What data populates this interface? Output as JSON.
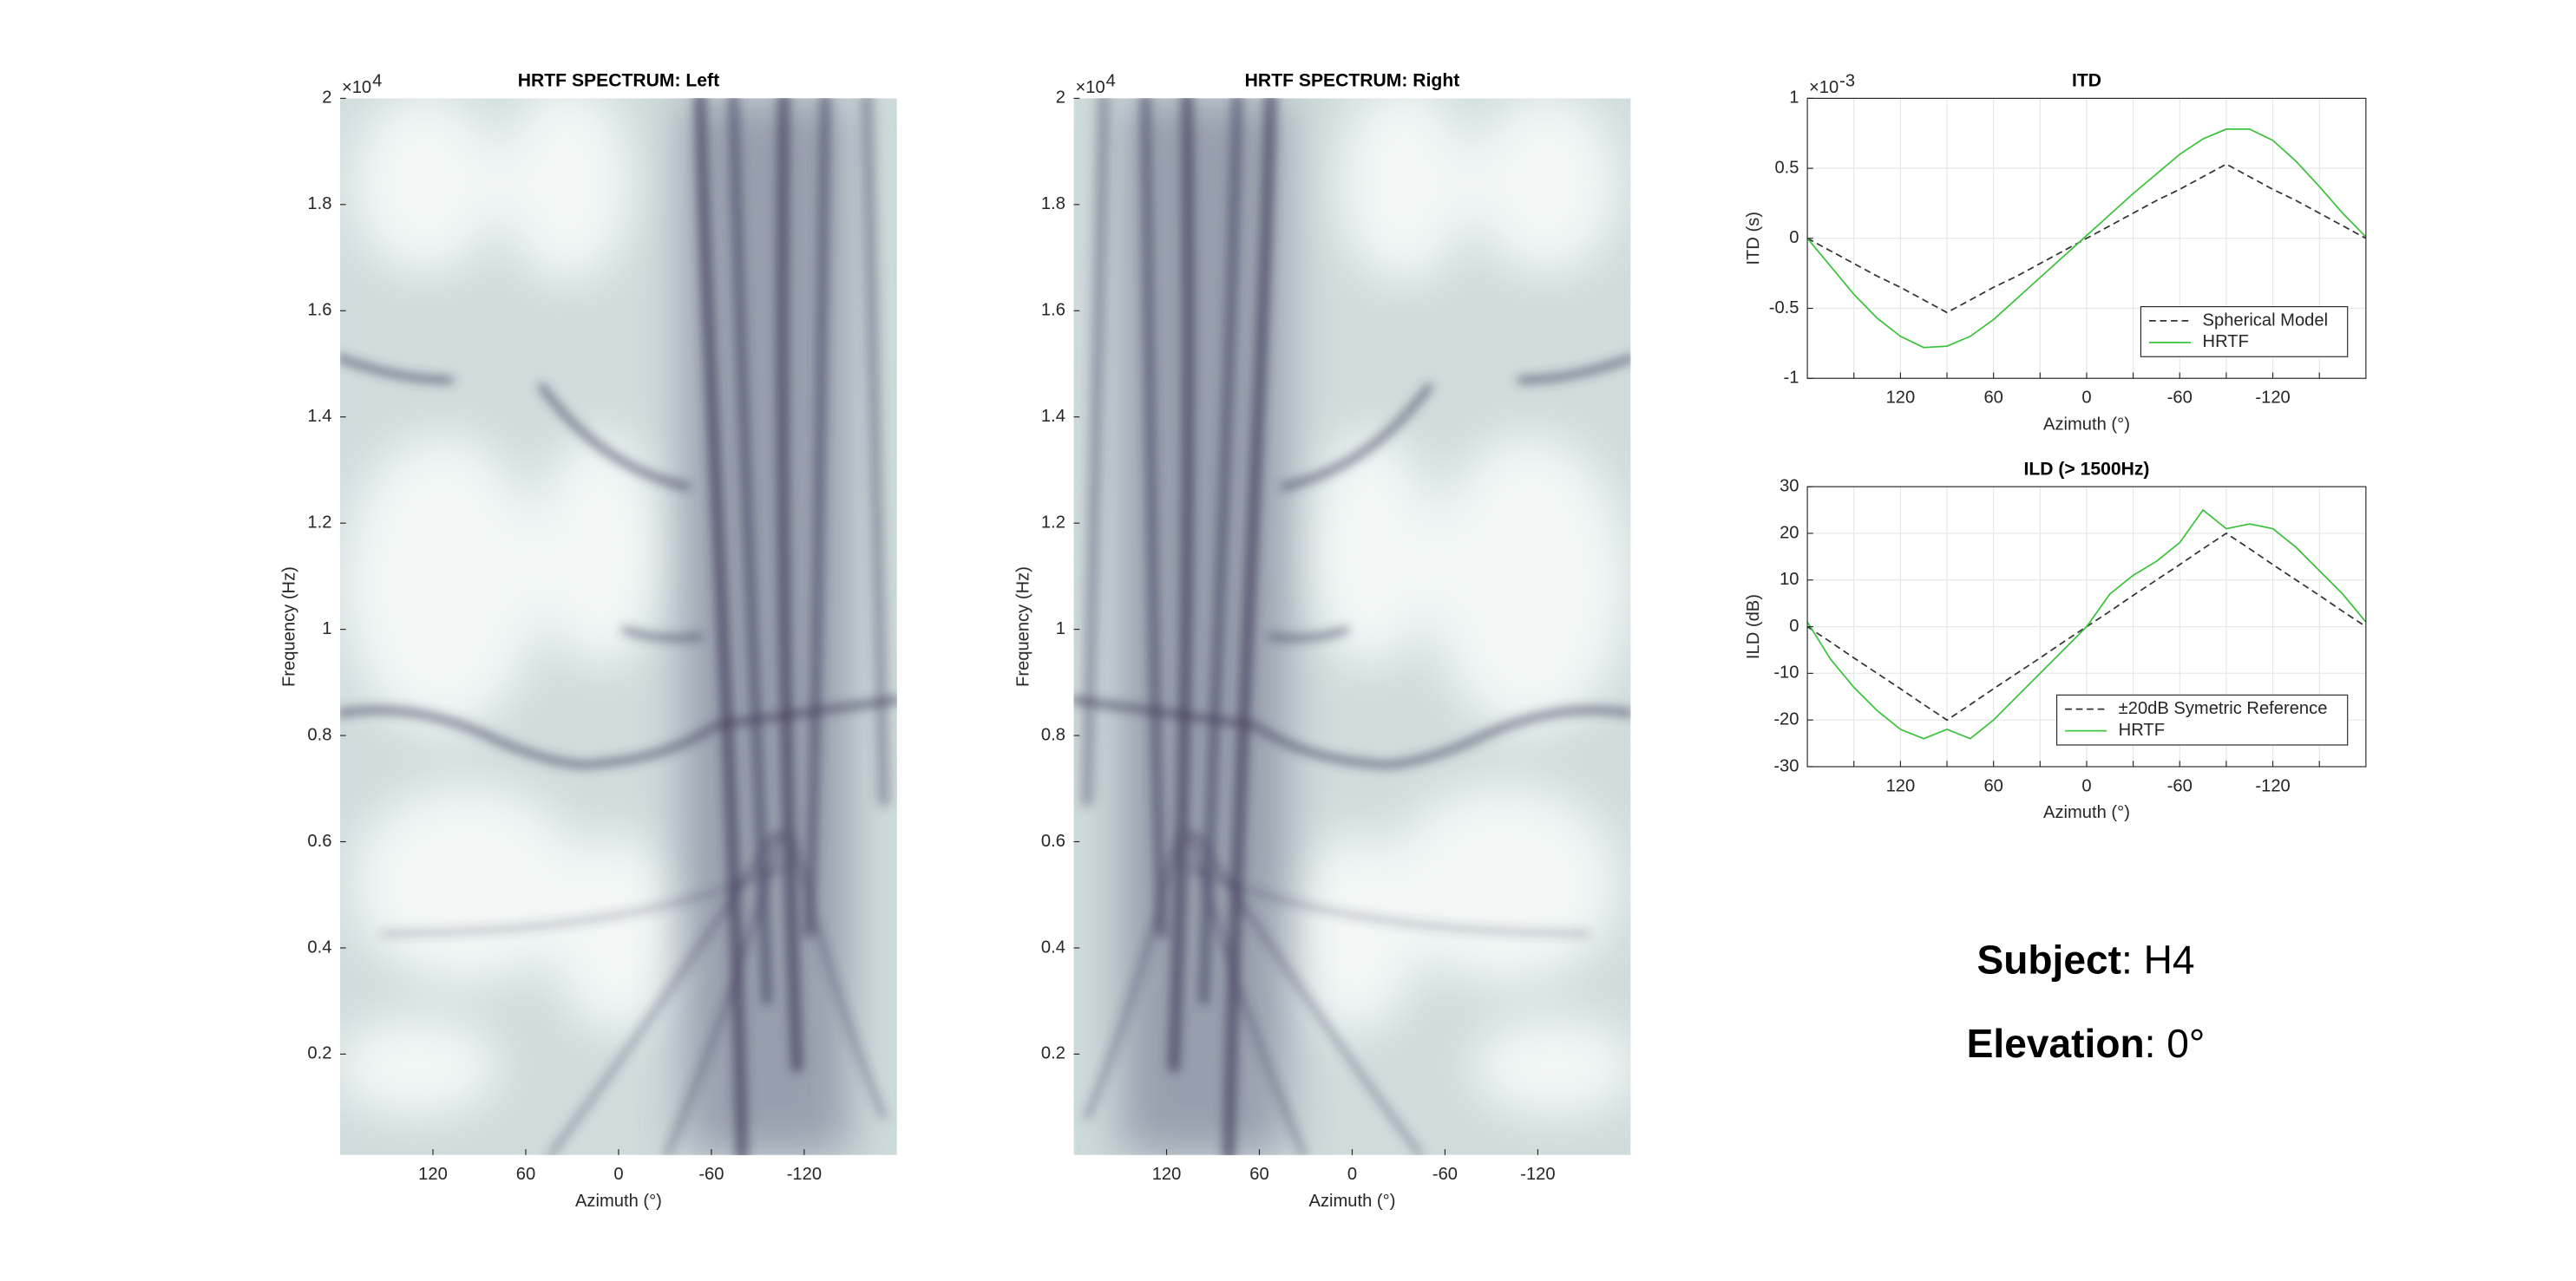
{
  "chart_data": [
    {
      "type": "heatmap",
      "title": "HRTF SPECTRUM: Left",
      "xlabel": "Azimuth (°)",
      "ylabel": "Frequency (Hz)",
      "xlim": [
        180,
        -180
      ],
      "xticks": [
        120,
        60,
        0,
        -60,
        -120
      ],
      "ylim": [
        0.01,
        2
      ],
      "yticks": [
        0.2,
        0.4,
        0.6,
        0.8,
        1,
        1.2,
        1.4,
        1.6,
        1.8,
        2
      ],
      "y_multiplier": {
        "base": "×10",
        "exponent": "4"
      },
      "mirror": false
    },
    {
      "type": "heatmap",
      "title": "HRTF SPECTRUM: Right",
      "xlabel": "Azimuth (°)",
      "ylabel": "Frequency (Hz)",
      "xlim": [
        180,
        -180
      ],
      "xticks": [
        120,
        60,
        0,
        -60,
        -120
      ],
      "ylim": [
        0.01,
        2
      ],
      "yticks": [
        0.2,
        0.4,
        0.6,
        0.8,
        1,
        1.2,
        1.4,
        1.6,
        1.8,
        2
      ],
      "y_multiplier": {
        "base": "×10",
        "exponent": "4"
      },
      "mirror": true
    },
    {
      "type": "line",
      "title": "ITD",
      "xlabel": "Azimuth (°)",
      "ylabel": "ITD (s)",
      "xlim": [
        180,
        -180
      ],
      "xticks": [
        120,
        60,
        0,
        -60,
        -120
      ],
      "xminorticks": [
        150,
        90,
        30,
        -30,
        -90,
        -150
      ],
      "ylim": [
        -1,
        1
      ],
      "yticks": [
        -1,
        -0.5,
        0,
        0.5,
        1
      ],
      "grid": true,
      "legend": "lower right",
      "y_multiplier": {
        "base": "×10",
        "exponent": "-3"
      },
      "x": [
        180,
        165,
        150,
        135,
        120,
        105,
        90,
        75,
        60,
        45,
        30,
        15,
        0,
        -15,
        -30,
        -45,
        -60,
        -75,
        -90,
        -105,
        -120,
        -135,
        -150,
        -165,
        -180
      ],
      "series": [
        {
          "name": "Spherical Model",
          "color": "#333333",
          "linestyle": "dashed",
          "values": [
            0,
            -0.09,
            -0.18,
            -0.27,
            -0.35,
            -0.44,
            -0.53,
            -0.44,
            -0.35,
            -0.27,
            -0.18,
            -0.09,
            0,
            0.09,
            0.18,
            0.27,
            0.35,
            0.44,
            0.53,
            0.44,
            0.35,
            0.27,
            0.18,
            0.09,
            0
          ]
        },
        {
          "name": "HRTF",
          "color": "#3cc23c",
          "linestyle": "solid",
          "values": [
            0,
            -0.2,
            -0.4,
            -0.57,
            -0.7,
            -0.78,
            -0.77,
            -0.7,
            -0.58,
            -0.43,
            -0.28,
            -0.13,
            0.02,
            0.17,
            0.32,
            0.46,
            0.6,
            0.71,
            0.78,
            0.78,
            0.7,
            0.55,
            0.37,
            0.18,
            0.01
          ]
        }
      ]
    },
    {
      "type": "line",
      "title": "ILD (> 1500Hz)",
      "xlabel": "Azimuth (°)",
      "ylabel": "ILD (dB)",
      "xlim": [
        180,
        -180
      ],
      "xticks": [
        120,
        60,
        0,
        -60,
        -120
      ],
      "xminorticks": [
        150,
        90,
        30,
        -30,
        -90,
        -150
      ],
      "ylim": [
        -30,
        30
      ],
      "yticks": [
        -30,
        -20,
        -10,
        0,
        10,
        20,
        30
      ],
      "grid": true,
      "legend": "lower right",
      "x": [
        180,
        165,
        150,
        135,
        120,
        105,
        90,
        75,
        60,
        45,
        30,
        15,
        0,
        -15,
        -30,
        -45,
        -60,
        -75,
        -90,
        -105,
        -120,
        -135,
        -150,
        -165,
        -180
      ],
      "series": [
        {
          "name": "±20dB Symetric Reference",
          "color": "#333333",
          "linestyle": "dashed",
          "values": [
            0,
            -3.3,
            -6.7,
            -10,
            -13.3,
            -16.7,
            -20,
            -16.7,
            -13.3,
            -10,
            -6.7,
            -3.3,
            0,
            3.3,
            6.7,
            10,
            13.3,
            16.7,
            20,
            16.7,
            13.3,
            10,
            6.7,
            3.3,
            0
          ]
        },
        {
          "name": "HRTF",
          "color": "#3cc23c",
          "linestyle": "solid",
          "values": [
            1,
            -7,
            -13,
            -18,
            -22,
            -24,
            -22,
            -24,
            -20,
            -15,
            -10,
            -5,
            0,
            7,
            11,
            14,
            18,
            25,
            21,
            22,
            21,
            17,
            12,
            7,
            1
          ]
        }
      ]
    }
  ],
  "info": {
    "subject_label": "Subject",
    "subject_value": ": H4",
    "elevation_label": "Elevation",
    "elevation_value": ": 0°"
  }
}
